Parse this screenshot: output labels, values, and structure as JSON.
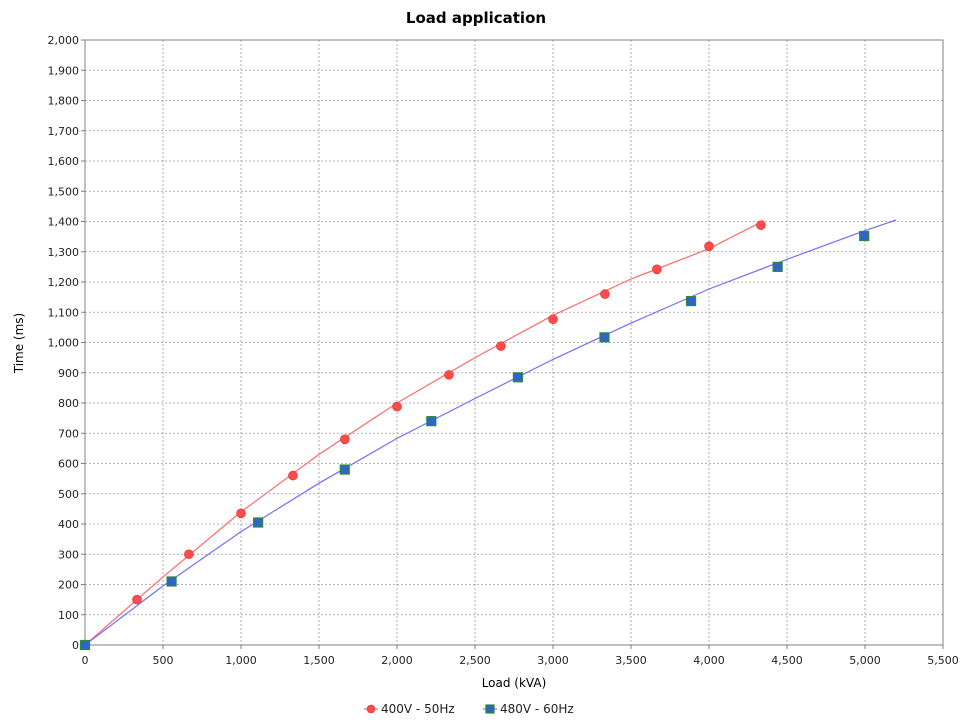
{
  "chart_data": {
    "type": "scatter",
    "title": "Load application",
    "xlabel": "Load (kVA)",
    "ylabel": "Time (ms)",
    "xlim": [
      0,
      5500
    ],
    "ylim": [
      0,
      2000
    ],
    "x_ticks": [
      0,
      500,
      1000,
      1500,
      2000,
      2500,
      3000,
      3500,
      4000,
      4500,
      5000,
      5500
    ],
    "x_tick_labels": [
      "0",
      "500",
      "1,000",
      "1,500",
      "2,000",
      "2,500",
      "3,000",
      "3,500",
      "4,000",
      "4,500",
      "5,000",
      "5,500"
    ],
    "y_ticks": [
      0,
      100,
      200,
      300,
      400,
      500,
      600,
      700,
      800,
      900,
      1000,
      1100,
      1200,
      1300,
      1400,
      1500,
      1600,
      1700,
      1800,
      1900,
      2000
    ],
    "y_tick_labels": [
      "0",
      "100",
      "200",
      "300",
      "400",
      "500",
      "600",
      "700",
      "800",
      "900",
      "1,000",
      "1,100",
      "1,200",
      "1,300",
      "1,400",
      "1,500",
      "1,600",
      "1,700",
      "1,800",
      "1,900",
      "2,000"
    ],
    "grid": true,
    "legend_position": "bottom-center",
    "series": [
      {
        "name": "400V - 50Hz",
        "color": "#ff4b4b",
        "marker": "circle",
        "points": [
          [
            0,
            0
          ],
          [
            333,
            150
          ],
          [
            666,
            300
          ],
          [
            1000,
            435
          ],
          [
            1333,
            560
          ],
          [
            1666,
            680
          ],
          [
            2000,
            788
          ],
          [
            2333,
            893
          ],
          [
            2666,
            988
          ],
          [
            3000,
            1077
          ],
          [
            3333,
            1160
          ],
          [
            3666,
            1242
          ],
          [
            4000,
            1318
          ],
          [
            4333,
            1388
          ]
        ],
        "fit_curve": [
          [
            0,
            0
          ],
          [
            500,
            225
          ],
          [
            1000,
            440
          ],
          [
            1500,
            630
          ],
          [
            2000,
            800
          ],
          [
            2500,
            950
          ],
          [
            3000,
            1090
          ],
          [
            3500,
            1210
          ],
          [
            4000,
            1310
          ],
          [
            4333,
            1398
          ]
        ]
      },
      {
        "name": "480V - 60Hz",
        "color": "#3264c8",
        "marker": "square",
        "points": [
          [
            0,
            0
          ],
          [
            555,
            210
          ],
          [
            1110,
            405
          ],
          [
            1665,
            580
          ],
          [
            2220,
            740
          ],
          [
            2775,
            885
          ],
          [
            3330,
            1017
          ],
          [
            3885,
            1137
          ],
          [
            4440,
            1250
          ],
          [
            4995,
            1352
          ]
        ],
        "fit_curve": [
          [
            0,
            0
          ],
          [
            500,
            195
          ],
          [
            1000,
            375
          ],
          [
            1500,
            535
          ],
          [
            2000,
            683
          ],
          [
            2500,
            815
          ],
          [
            3000,
            944
          ],
          [
            3500,
            1064
          ],
          [
            4000,
            1177
          ],
          [
            4500,
            1275
          ],
          [
            5000,
            1370
          ],
          [
            5200,
            1405
          ]
        ]
      }
    ]
  }
}
